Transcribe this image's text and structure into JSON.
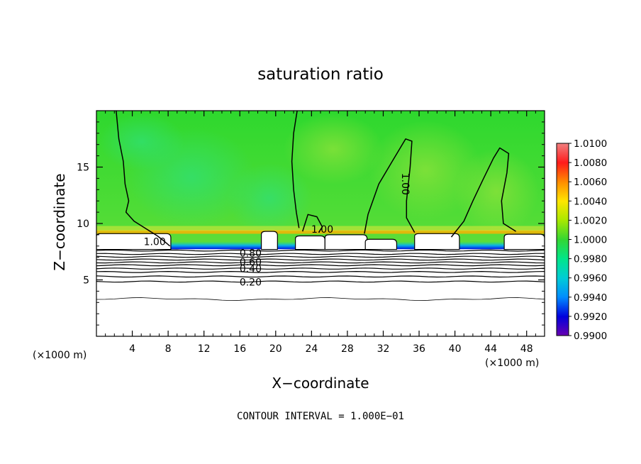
{
  "chart_data": {
    "type": "heatmap",
    "title": "saturation ratio",
    "xlabel": "X−coordinate",
    "ylabel": "Z−coordinate",
    "x_unit_left": "(×1000 m)",
    "x_unit_right": "(×1000 m)",
    "footer": "CONTOUR INTERVAL = 1.000E−01",
    "xlim": [
      0,
      50
    ],
    "ylim": [
      0,
      20
    ],
    "x_ticks": [
      4,
      8,
      12,
      16,
      20,
      24,
      28,
      32,
      36,
      40,
      44,
      48
    ],
    "y_ticks": [
      5,
      10,
      15
    ],
    "colorbar": {
      "labels": [
        "1.0100",
        "1.0080",
        "1.0060",
        "1.0040",
        "1.0020",
        "1.0000",
        "0.9980",
        "0.9960",
        "0.9940",
        "0.9920",
        "0.9900"
      ],
      "colors": [
        "#f08080",
        "#ff1a1a",
        "#ff8c00",
        "#ffe600",
        "#a8e800",
        "#33d633",
        "#00e68a",
        "#00ccd6",
        "#008cff",
        "#0000dd",
        "#6a00b0"
      ]
    },
    "contour_labels": [
      {
        "text": "1.00",
        "x": 6.5,
        "y": 8.4
      },
      {
        "text": "1.00",
        "x": 25.2,
        "y": 9.5
      },
      {
        "text": "1.00",
        "x": 34.5,
        "y": 13.5
      },
      {
        "text": "0.80",
        "x": 17.2,
        "y": 7.4
      },
      {
        "text": "0.60",
        "x": 17.2,
        "y": 6.6
      },
      {
        "text": "0.40",
        "x": 17.2,
        "y": 6.0
      },
      {
        "text": "0.20",
        "x": 17.2,
        "y": 4.8
      }
    ]
  }
}
